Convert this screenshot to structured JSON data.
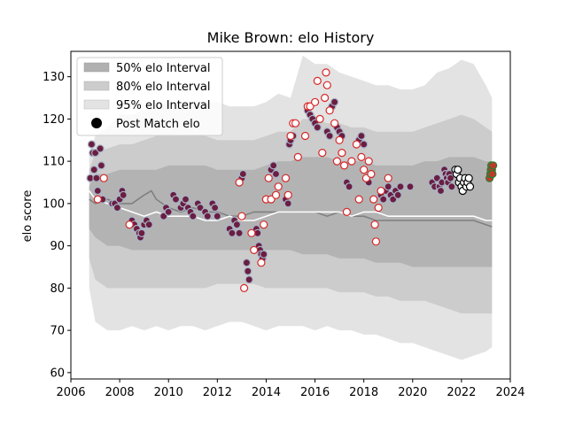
{
  "chart_data": {
    "type": "scatter",
    "title": "Mike Brown: elo History",
    "xlabel": "",
    "ylabel": "elo score",
    "xlim": [
      2006,
      2024
    ],
    "ylim": [
      58.5,
      136
    ],
    "xticks": [
      2006,
      2008,
      2010,
      2012,
      2014,
      2016,
      2018,
      2020,
      2022,
      2024
    ],
    "yticks": [
      60,
      70,
      80,
      90,
      100,
      110,
      120,
      130
    ],
    "legend_position": "top-left",
    "legend": [
      {
        "label": "50% elo Interval",
        "kind": "band",
        "color": "#b0b0b0"
      },
      {
        "label": "80% elo Interval",
        "kind": "band",
        "color": "#cccccc"
      },
      {
        "label": "95% elo Interval",
        "kind": "band",
        "color": "#e3e3e3"
      },
      {
        "label": "Post Match elo",
        "kind": "marker",
        "color": "#000000"
      }
    ],
    "bands": {
      "x": [
        2006.75,
        2007.0,
        2007.5,
        2008.0,
        2008.5,
        2009.0,
        2009.5,
        2010.0,
        2010.5,
        2011.0,
        2011.5,
        2012.0,
        2012.5,
        2013.0,
        2013.5,
        2014.0,
        2014.5,
        2015.0,
        2015.5,
        2016.0,
        2016.5,
        2017.0,
        2017.5,
        2018.0,
        2018.5,
        2019.0,
        2019.5,
        2020.0,
        2020.5,
        2021.0,
        2021.5,
        2022.0,
        2022.5,
        2023.0,
        2023.25
      ],
      "p95_hi": [
        112,
        116,
        118,
        121,
        121,
        122,
        123,
        124,
        124,
        124,
        124,
        124,
        123,
        123,
        123,
        124,
        126,
        125,
        135,
        133,
        133,
        131,
        130,
        129,
        128,
        128,
        127,
        127,
        128,
        131,
        132,
        134,
        133,
        128,
        125
      ],
      "p95_lo": [
        80,
        72,
        70,
        70,
        71,
        70,
        71,
        70,
        71,
        71,
        70,
        71,
        72,
        72,
        71,
        70,
        71,
        71,
        71,
        70,
        71,
        70,
        70,
        69,
        69,
        68,
        67,
        67,
        66,
        65,
        64,
        63,
        64,
        65,
        66
      ],
      "p80_hi": [
        108,
        112,
        113,
        114,
        114,
        115,
        116,
        116,
        116,
        116,
        116,
        115,
        115,
        115,
        115,
        116,
        117,
        117,
        120,
        120,
        119,
        119,
        118,
        118,
        117,
        117,
        117,
        117,
        118,
        119,
        120,
        121,
        120,
        118,
        117
      ],
      "p80_lo": [
        87,
        82,
        80,
        80,
        80,
        80,
        80,
        80,
        80,
        80,
        80,
        81,
        81,
        81,
        81,
        80,
        80,
        80,
        80,
        80,
        80,
        79,
        79,
        79,
        78,
        78,
        77,
        77,
        77,
        76,
        75,
        74,
        74,
        74,
        74
      ],
      "p50_hi": [
        104,
        107,
        107,
        108,
        108,
        108,
        108,
        109,
        109,
        109,
        109,
        108,
        108,
        108,
        108,
        109,
        110,
        110,
        111,
        111,
        111,
        110,
        110,
        110,
        109,
        109,
        109,
        109,
        110,
        110,
        111,
        111,
        111,
        110,
        110
      ],
      "p50_lo": [
        94,
        92,
        90,
        90,
        89,
        89,
        89,
        89,
        89,
        89,
        89,
        89,
        89,
        89,
        89,
        89,
        89,
        89,
        88,
        88,
        88,
        87,
        87,
        87,
        86,
        86,
        86,
        85,
        85,
        85,
        85,
        85,
        85,
        85,
        85
      ]
    },
    "lines": [
      {
        "color": "#808080",
        "x": [
          2006.75,
          2007.0,
          2007.5,
          2008.0,
          2008.5,
          2009.0,
          2009.3,
          2009.5,
          2010.0,
          2010.5,
          2011.0,
          2011.5,
          2012.0,
          2012.5,
          2013.0,
          2013.5,
          2014.0,
          2014.5,
          2015.0,
          2015.5,
          2016.0,
          2016.5,
          2017.0,
          2017.5,
          2018.0,
          2018.5,
          2019.0,
          2019.5,
          2020.0,
          2020.5,
          2021.0,
          2021.5,
          2022.0,
          2022.5,
          2023.0,
          2023.25
        ],
        "y": [
          101,
          100,
          101,
          100,
          100,
          102,
          103,
          101,
          99,
          98,
          99,
          98,
          98,
          97,
          97,
          98,
          98,
          98,
          98,
          98,
          98,
          97,
          98,
          97,
          97,
          96,
          96,
          96,
          96,
          96,
          96,
          96,
          96,
          96,
          95,
          94.5
        ]
      },
      {
        "color": "#ffffff",
        "x": [
          2006.75,
          2007.0,
          2007.5,
          2008.0,
          2008.5,
          2009.0,
          2009.5,
          2010.0,
          2010.5,
          2011.0,
          2011.5,
          2012.0,
          2012.5,
          2013.0,
          2013.5,
          2014.0,
          2014.5,
          2015.0,
          2015.5,
          2016.0,
          2016.5,
          2017.0,
          2017.5,
          2018.0,
          2018.5,
          2019.0,
          2019.5,
          2020.0,
          2020.5,
          2021.0,
          2021.5,
          2022.0,
          2022.5,
          2023.0,
          2023.25
        ],
        "y": [
          103,
          101,
          100,
          99,
          98,
          97,
          98,
          97,
          97,
          97,
          96,
          96,
          97,
          96,
          96,
          97,
          98,
          98,
          98,
          98,
          98,
          98,
          97,
          98,
          98,
          97,
          97,
          97,
          97,
          97,
          97,
          97,
          97,
          96,
          96
        ]
      }
    ],
    "series": [
      {
        "style": "filled",
        "fill": "#6b1e3f",
        "edge": "#a7b4cc",
        "points": [
          [
            2006.8,
            106
          ],
          [
            2006.85,
            114
          ],
          [
            2006.9,
            112
          ],
          [
            2006.95,
            108
          ],
          [
            2007.0,
            112
          ],
          [
            2007.05,
            106
          ],
          [
            2007.1,
            103
          ],
          [
            2007.2,
            113
          ],
          [
            2007.25,
            109
          ],
          [
            2007.3,
            101
          ],
          [
            2007.7,
            100
          ],
          [
            2007.8,
            100
          ],
          [
            2007.9,
            99
          ],
          [
            2008.0,
            101
          ],
          [
            2008.1,
            103
          ],
          [
            2008.15,
            102
          ],
          [
            2008.5,
            96
          ],
          [
            2008.6,
            95
          ],
          [
            2008.7,
            94
          ],
          [
            2008.8,
            93
          ],
          [
            2008.85,
            92
          ],
          [
            2008.9,
            93
          ],
          [
            2009.0,
            95
          ],
          [
            2009.1,
            96
          ],
          [
            2009.2,
            95
          ],
          [
            2009.8,
            97
          ],
          [
            2009.9,
            99
          ],
          [
            2010.0,
            98
          ],
          [
            2010.2,
            102
          ],
          [
            2010.3,
            101
          ],
          [
            2010.5,
            99
          ],
          [
            2010.6,
            100
          ],
          [
            2010.7,
            101
          ],
          [
            2010.8,
            99
          ],
          [
            2010.9,
            98
          ],
          [
            2011.0,
            97
          ],
          [
            2011.2,
            100
          ],
          [
            2011.3,
            99
          ],
          [
            2011.5,
            98
          ],
          [
            2011.6,
            97
          ],
          [
            2011.8,
            100
          ],
          [
            2011.9,
            99
          ],
          [
            2012.0,
            97
          ],
          [
            2012.5,
            94
          ],
          [
            2012.6,
            93
          ],
          [
            2012.7,
            96
          ],
          [
            2012.8,
            95
          ],
          [
            2012.9,
            93
          ],
          [
            2013.0,
            106
          ],
          [
            2013.05,
            107
          ],
          [
            2013.2,
            86
          ],
          [
            2013.25,
            84
          ],
          [
            2013.3,
            82
          ],
          [
            2013.6,
            94
          ],
          [
            2013.65,
            93
          ],
          [
            2013.7,
            90
          ],
          [
            2013.75,
            89
          ],
          [
            2013.8,
            88
          ],
          [
            2013.85,
            87
          ],
          [
            2013.9,
            88
          ],
          [
            2014.1,
            106
          ],
          [
            2014.2,
            108
          ],
          [
            2014.3,
            109
          ],
          [
            2014.4,
            107
          ],
          [
            2014.8,
            101
          ],
          [
            2014.9,
            100
          ],
          [
            2014.95,
            114
          ],
          [
            2015.0,
            115
          ],
          [
            2015.1,
            116
          ],
          [
            2015.7,
            122
          ],
          [
            2015.8,
            121
          ],
          [
            2015.9,
            120
          ],
          [
            2016.0,
            119
          ],
          [
            2016.1,
            118
          ],
          [
            2016.5,
            117
          ],
          [
            2016.6,
            116
          ],
          [
            2016.7,
            123
          ],
          [
            2016.8,
            124
          ],
          [
            2016.9,
            118
          ],
          [
            2017.0,
            117
          ],
          [
            2017.1,
            116
          ],
          [
            2017.2,
            109
          ],
          [
            2017.3,
            105
          ],
          [
            2017.4,
            104
          ],
          [
            2017.8,
            115
          ],
          [
            2017.9,
            116
          ],
          [
            2018.0,
            114
          ],
          [
            2018.1,
            106
          ],
          [
            2018.2,
            105
          ],
          [
            2018.7,
            102
          ],
          [
            2018.8,
            101
          ],
          [
            2018.9,
            103
          ],
          [
            2019.0,
            104
          ],
          [
            2019.1,
            102
          ],
          [
            2019.2,
            101
          ],
          [
            2019.3,
            103
          ],
          [
            2019.4,
            102
          ],
          [
            2019.5,
            104
          ],
          [
            2019.9,
            104
          ],
          [
            2020.8,
            105
          ],
          [
            2020.9,
            104
          ],
          [
            2021.0,
            106
          ],
          [
            2021.1,
            104
          ],
          [
            2021.15,
            103
          ],
          [
            2021.2,
            105
          ],
          [
            2021.3,
            108
          ],
          [
            2021.35,
            107
          ],
          [
            2021.4,
            106
          ],
          [
            2021.45,
            105
          ],
          [
            2021.5,
            107
          ],
          [
            2021.55,
            106
          ],
          [
            2021.6,
            104
          ]
        ]
      },
      {
        "style": "hollow-red",
        "fill": "#ffffff",
        "edge": "#d62728",
        "points": [
          [
            2007.1,
            101
          ],
          [
            2007.35,
            106
          ],
          [
            2008.4,
            95
          ],
          [
            2012.9,
            105
          ],
          [
            2013.0,
            97
          ],
          [
            2013.1,
            80
          ],
          [
            2013.4,
            93
          ],
          [
            2013.5,
            89
          ],
          [
            2013.8,
            86
          ],
          [
            2013.9,
            95
          ],
          [
            2014.0,
            101
          ],
          [
            2014.1,
            106
          ],
          [
            2014.2,
            101
          ],
          [
            2014.4,
            102
          ],
          [
            2014.5,
            104
          ],
          [
            2014.8,
            106
          ],
          [
            2014.9,
            102
          ],
          [
            2015.0,
            116
          ],
          [
            2015.1,
            119
          ],
          [
            2015.2,
            119
          ],
          [
            2015.3,
            111
          ],
          [
            2015.6,
            116
          ],
          [
            2015.7,
            123
          ],
          [
            2015.8,
            123
          ],
          [
            2016.0,
            124
          ],
          [
            2016.1,
            129
          ],
          [
            2016.2,
            120
          ],
          [
            2016.3,
            112
          ],
          [
            2016.4,
            125
          ],
          [
            2016.45,
            131
          ],
          [
            2016.5,
            128
          ],
          [
            2016.6,
            122
          ],
          [
            2016.8,
            119
          ],
          [
            2016.9,
            110
          ],
          [
            2017.0,
            115
          ],
          [
            2017.1,
            112
          ],
          [
            2017.2,
            109
          ],
          [
            2017.3,
            98
          ],
          [
            2017.5,
            110
          ],
          [
            2017.7,
            114
          ],
          [
            2017.8,
            101
          ],
          [
            2017.9,
            111
          ],
          [
            2018.0,
            108
          ],
          [
            2018.1,
            106
          ],
          [
            2018.2,
            110
          ],
          [
            2018.3,
            107
          ],
          [
            2018.4,
            101
          ],
          [
            2018.45,
            95
          ],
          [
            2018.5,
            91
          ],
          [
            2018.6,
            99
          ],
          [
            2018.7,
            103
          ],
          [
            2019.0,
            106
          ]
        ]
      },
      {
        "style": "hollow-black",
        "fill": "#ffffff",
        "edge": "#000000",
        "points": [
          [
            2021.75,
            108
          ],
          [
            2021.8,
            107
          ],
          [
            2021.85,
            108
          ],
          [
            2021.9,
            105
          ],
          [
            2021.95,
            106
          ],
          [
            2022.0,
            104
          ],
          [
            2022.05,
            103
          ],
          [
            2022.1,
            105
          ],
          [
            2022.15,
            106
          ],
          [
            2022.2,
            104
          ],
          [
            2022.25,
            105
          ],
          [
            2022.3,
            106
          ],
          [
            2022.35,
            104
          ]
        ]
      },
      {
        "style": "filled-green",
        "fill": "#c0392b",
        "edge": "#2e7d32",
        "points": [
          [
            2023.15,
            106
          ],
          [
            2023.18,
            107
          ],
          [
            2023.2,
            108
          ],
          [
            2023.22,
            109
          ],
          [
            2023.25,
            108
          ],
          [
            2023.27,
            107
          ],
          [
            2023.3,
            109
          ]
        ]
      }
    ]
  }
}
